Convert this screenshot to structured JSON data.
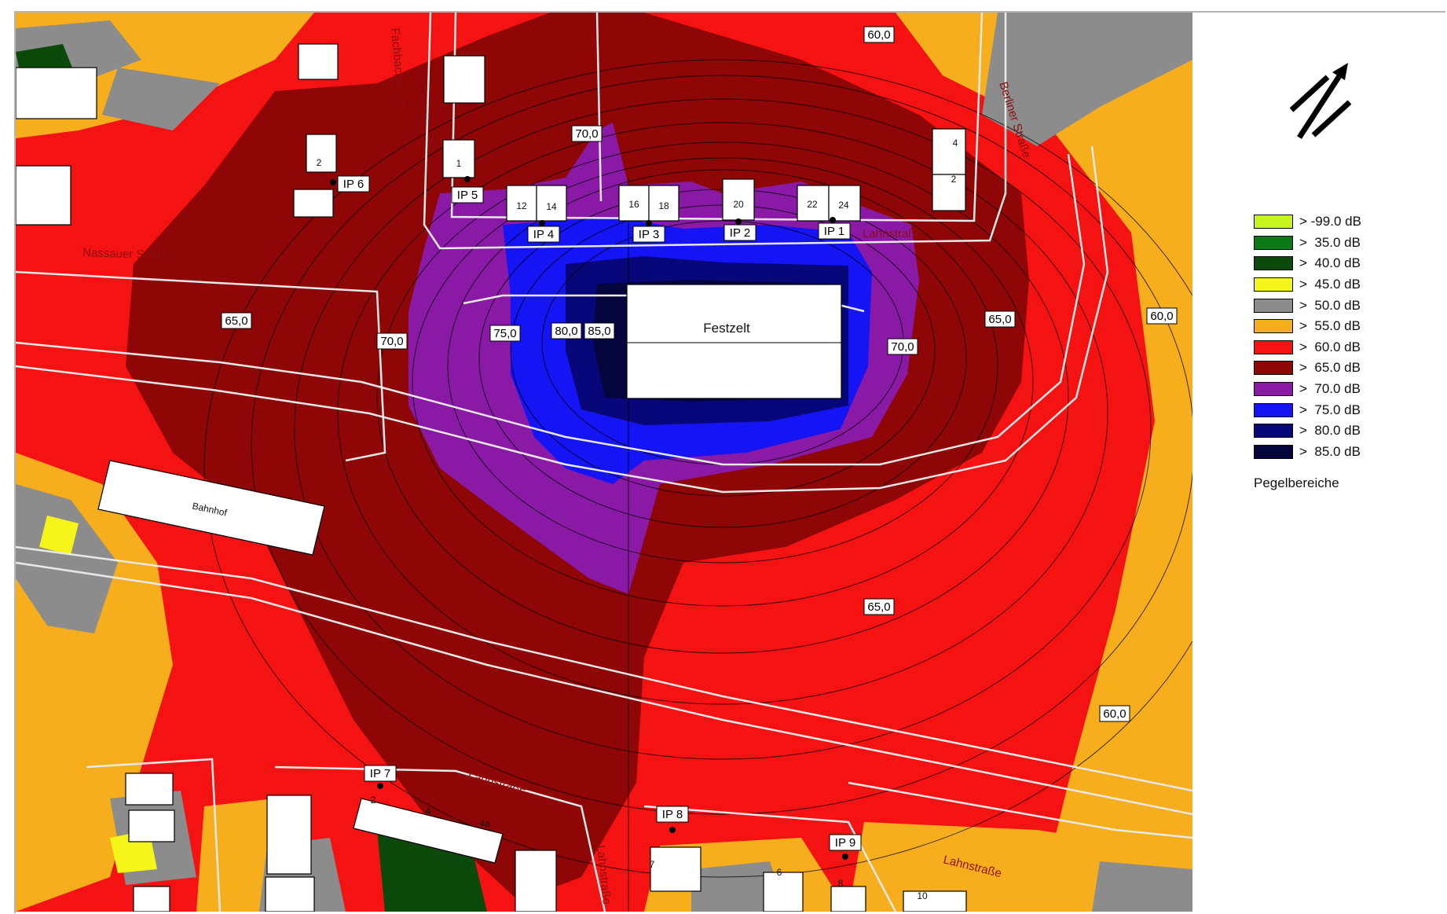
{
  "legend": {
    "title": "Pegelbereiche",
    "items": [
      {
        "label": "> -99.0 dB",
        "color": "#c6f51e"
      },
      {
        "label": ">  35.0 dB",
        "color": "#0c7a16"
      },
      {
        "label": ">  40.0 dB",
        "color": "#0b4a0b"
      },
      {
        "label": ">  45.0 dB",
        "color": "#f5f51a"
      },
      {
        "label": ">  50.0 dB",
        "color": "#8c8c8c"
      },
      {
        "label": ">  55.0 dB",
        "color": "#f7ae1c"
      },
      {
        "label": ">  60.0 dB",
        "color": "#f51212"
      },
      {
        "label": ">  65.0 dB",
        "color": "#8e0606"
      },
      {
        "label": ">  70.0 dB",
        "color": "#8a1aa6"
      },
      {
        "label": ">  75.0 dB",
        "color": "#1414f5"
      },
      {
        "label": ">  80.0 dB",
        "color": "#07077a"
      },
      {
        "label": ">  85.0 dB",
        "color": "#05053d"
      }
    ]
  },
  "map": {
    "tent_label": "Festzelt",
    "station_label": "Bahnhof",
    "streets": {
      "nassauer": "Nassauer Straße",
      "lahnstrasse_bottom": "Lahnstraße",
      "lahnstrasse_right": "Lahnstraße",
      "berliner": "Berliner Straße",
      "fachbach": "Fachbacher Str.",
      "lahnstrasse_top": "Lahnstraße",
      "lahnstrasse_center": "Lahnstraße"
    },
    "level_labels": {
      "l60_top": "60,0",
      "l70_top": "70,0",
      "l65_left": "65,0",
      "l70_left": "70,0",
      "l75": "75,0",
      "l80": "80,0",
      "l85": "85,0",
      "l70_right": "70,0",
      "l65_right": "65,0",
      "l60_right": "60,0",
      "l65_bottom": "65,0",
      "l60_bottom": "60,0"
    },
    "points": {
      "ip1": "IP 1",
      "ip2": "IP 2",
      "ip3": "IP 3",
      "ip4": "IP 4",
      "ip5": "IP 5",
      "ip6": "IP 6",
      "ip7": "IP 7",
      "ip8": "IP 8",
      "ip9": "IP 9"
    },
    "house_numbers": {
      "h1": "1",
      "h2a": "2",
      "h12": "12",
      "h14": "14",
      "h16": "16",
      "h18": "18",
      "h20": "20",
      "h22": "22",
      "h24": "24",
      "h4r": "4",
      "h2r": "2",
      "h2b": "2",
      "h4b": "4",
      "h4a": "4a",
      "h7": "7",
      "h6": "6",
      "h8": "8",
      "h10": "10"
    }
  }
}
